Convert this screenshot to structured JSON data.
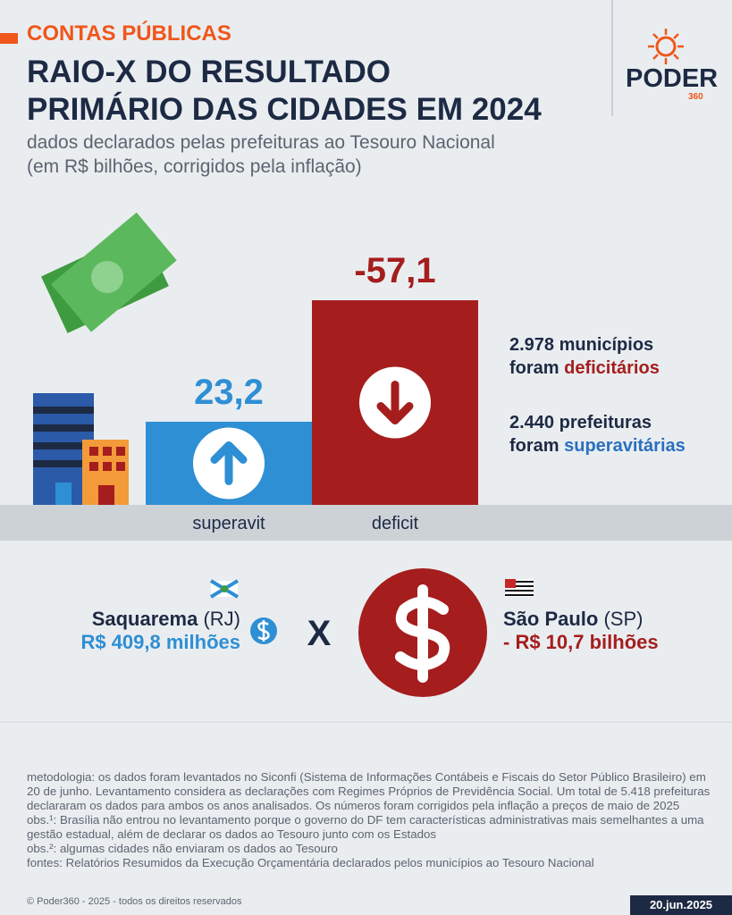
{
  "header": {
    "kicker": "CONTAS PÚBLICAS",
    "title_lines": [
      "RAIO-X DO RESULTADO",
      "PRIMÁRIO DAS CIDADES EM 2024"
    ],
    "subtitle_lines": [
      "dados declarados pelas prefeituras ao Tesouro Nacional",
      "(em R$ bilhões, corrigidos pela inflação)"
    ],
    "logo": "PODER",
    "logo_sub": "360"
  },
  "chart_data": {
    "type": "bar",
    "categories": [
      "superavit",
      "deficit"
    ],
    "values": [
      23.2,
      -57.1
    ],
    "value_labels": [
      "23,2",
      "-57,1"
    ],
    "colors": [
      "#2e8fd4",
      "#a51d1d"
    ]
  },
  "notes": [
    {
      "count": "2.978 municípios",
      "lead": "foram ",
      "highlight": "deficitários"
    },
    {
      "count": "2.440 prefeituras",
      "lead": "foram ",
      "highlight": "superavitárias"
    }
  ],
  "comparison": {
    "left": {
      "city": "Saquarema",
      "state": "(RJ)",
      "value": "R$ 409,8 milhões"
    },
    "separator": "X",
    "right": {
      "city": "São Paulo",
      "state": "(SP)",
      "value": "- R$ 10,7 bilhões"
    }
  },
  "footer": {
    "paragraphs": [
      "metodologia: os dados foram levantados no Siconfi (Sistema de Informações Contábeis e Fiscais do Setor Público Brasileiro) em 20 de junho. Levantamento considera as declarações com Regimes Próprios de Previdência Social. Um total de 5.418 prefeituras declararam os dados para ambos os anos analisados. Os números foram corrigidos pela inflação a preços de maio de 2025",
      "obs.¹: Brasília não entrou no levantamento porque o governo do DF tem características administrativas mais semelhantes a uma gestão estadual, além de declarar os dados ao Tesouro junto com os Estados",
      "obs.²: algumas cidades não enviaram os dados ao Tesouro",
      "fontes: Relatórios Resumidos da Execução Orçamentária declarados pelos municípios ao Tesouro Nacional"
    ],
    "copyright": "© Poder360 - 2025 - todos os direitos reservados",
    "date": "20.jun.2025"
  }
}
